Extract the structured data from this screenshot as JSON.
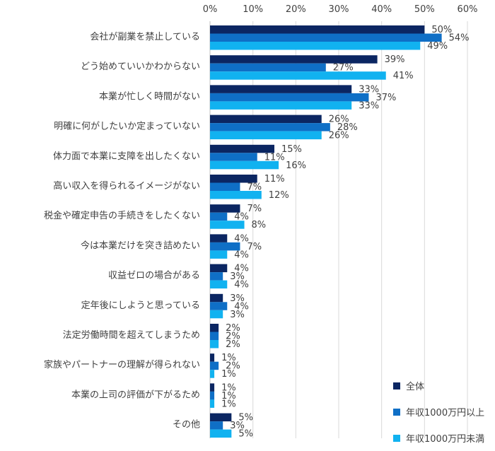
{
  "colors": {
    "series": [
      "#0b2662",
      "#0f6fc6",
      "#11b2f0"
    ],
    "grid": "#d9d9d9",
    "axis": "#bfbfbf",
    "text": "#404040"
  },
  "chart_data": {
    "type": "bar",
    "orientation": "horizontal",
    "title": "",
    "xlabel": "",
    "ylabel": "",
    "xlim": [
      0,
      60
    ],
    "x_ticks": [
      "0%",
      "10%",
      "20%",
      "30%",
      "40%",
      "50%",
      "60%"
    ],
    "grid": true,
    "legend_position": "bottom-right",
    "categories": [
      "会社が副業を禁止している",
      "どう始めていいかわからない",
      "本業が忙しく時間がない",
      "明確に何がしたいか定まっていない",
      "体力面で本業に支障を出したくない",
      "高い収入を得られるイメージがない",
      "税金や確定申告の手続きをしたくない",
      "今は本業だけを突き詰めたい",
      "収益ゼロの場合がある",
      "定年後にしようと思っている",
      "法定労働時間を超えてしまうため",
      "家族やパートナーの理解が得られない",
      "本業の上司の評価が下がるため",
      "その他"
    ],
    "series": [
      {
        "name": "全体",
        "values": [
          50,
          39,
          33,
          26,
          15,
          11,
          7,
          4,
          4,
          3,
          2,
          1,
          1,
          5
        ],
        "labels": [
          "50%",
          "39%",
          "33%",
          "26%",
          "15%",
          "11%",
          "7%",
          "4%",
          "4%",
          "3%",
          "2%",
          "1%",
          "1%",
          "5%"
        ]
      },
      {
        "name": "年収1000万円以上",
        "values": [
          54,
          27,
          37,
          28,
          11,
          7,
          4,
          7,
          3,
          4,
          2,
          2,
          1,
          3
        ],
        "labels": [
          "54%",
          "27%",
          "37%",
          "28%",
          "11%",
          "7%",
          "4%",
          "7%",
          "3%",
          "4%",
          "2%",
          "2%",
          "1%",
          "3%"
        ]
      },
      {
        "name": "年収1000万円未満",
        "values": [
          49,
          41,
          33,
          26,
          16,
          12,
          8,
          4,
          4,
          3,
          2,
          1,
          1,
          5
        ],
        "labels": [
          "49%",
          "41%",
          "33%",
          "26%",
          "16%",
          "12%",
          "8%",
          "4%",
          "4%",
          "3%",
          "2%",
          "1%",
          "1%",
          "5%"
        ]
      }
    ]
  }
}
